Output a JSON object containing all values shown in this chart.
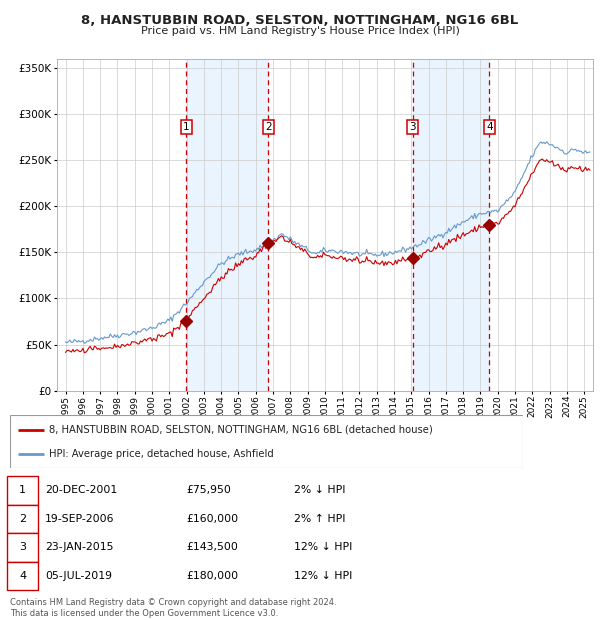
{
  "title1": "8, HANSTUBBIN ROAD, SELSTON, NOTTINGHAM, NG16 6BL",
  "title2": "Price paid vs. HM Land Registry's House Price Index (HPI)",
  "legend_label1": "8, HANSTUBBIN ROAD, SELSTON, NOTTINGHAM, NG16 6BL (detached house)",
  "legend_label2": "HPI: Average price, detached house, Ashfield",
  "footer": "Contains HM Land Registry data © Crown copyright and database right 2024.\nThis data is licensed under the Open Government Licence v3.0.",
  "transactions": [
    {
      "num": 1,
      "date": "20-DEC-2001",
      "price": 75950,
      "pct": "2%",
      "dir": "↓",
      "year_x": 2001.97
    },
    {
      "num": 2,
      "date": "19-SEP-2006",
      "price": 160000,
      "pct": "2%",
      "dir": "↑",
      "year_x": 2006.72
    },
    {
      "num": 3,
      "date": "23-JAN-2015",
      "price": 143500,
      "pct": "12%",
      "dir": "↓",
      "year_x": 2015.07
    },
    {
      "num": 4,
      "date": "05-JUL-2019",
      "price": 180000,
      "pct": "12%",
      "dir": "↓",
      "year_x": 2019.51
    }
  ],
  "hpi_color": "#6699cc",
  "price_color": "#cc0000",
  "bg_shade_color": "#ddeeff",
  "vline_color": "#cc0000",
  "marker_color": "#990000",
  "ylim": [
    0,
    360000
  ],
  "yticks": [
    0,
    50000,
    100000,
    150000,
    200000,
    250000,
    300000,
    350000
  ],
  "xlim_start": 1994.5,
  "xlim_end": 2025.5
}
